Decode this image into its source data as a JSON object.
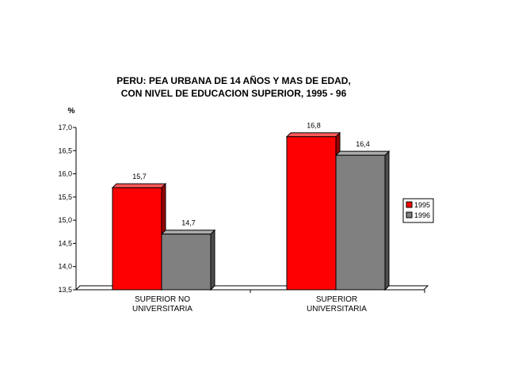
{
  "chart_data": {
    "type": "bar",
    "title_lines": [
      "PERU: PEA URBANA DE 14 AÑOS Y MAS DE EDAD,",
      "CON NIVEL DE EDUCACION SUPERIOR, 1995 - 96"
    ],
    "ylabel": "%",
    "ylim": [
      13.5,
      17.0
    ],
    "yticks": [
      "13,5",
      "14,0",
      "14,5",
      "15,0",
      "15,5",
      "16,0",
      "16,5",
      "17,0"
    ],
    "categories": [
      [
        "SUPERIOR NO",
        "UNIVERSITARIA"
      ],
      [
        "SUPERIOR",
        "UNIVERSITARIA"
      ]
    ],
    "series": [
      {
        "name": "1995",
        "values": [
          15.7,
          16.8
        ],
        "labels": [
          "15,7",
          "16,8"
        ],
        "color": "#ff0000"
      },
      {
        "name": "1996",
        "values": [
          14.7,
          16.4
        ],
        "labels": [
          "14,7",
          "16,4"
        ],
        "color": "#808080"
      }
    ],
    "legend_position": "right",
    "grid": false
  }
}
